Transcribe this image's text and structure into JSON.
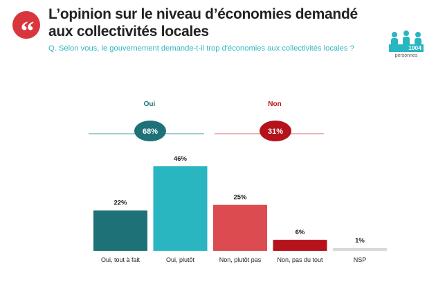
{
  "header": {
    "title": "L’opinion sur le niveau d’économies demandé aux collectivités locales",
    "question": "Q. Selon vous, le gouvernement demande-t-il trop d'économies aux collectivités locales ?",
    "sample_count": "1004",
    "sample_unit": "personnes"
  },
  "colors": {
    "brand_red": "#d8363c",
    "brand_teal": "#29b6c1",
    "oui_dark": "#1e7277",
    "non_dark": "#b5121b",
    "non_light": "#db4b4f",
    "nsp_grey": "#d9d9d9"
  },
  "chart_data": {
    "type": "bar",
    "title": "L’opinion sur le niveau d’économies demandé aux collectivités locales",
    "categories": [
      "Oui, tout à fait",
      "Oui, plutôt",
      "Non, plutôt pas",
      "Non, pas du tout",
      "NSP"
    ],
    "values": [
      22,
      46,
      25,
      6,
      1
    ],
    "value_labels": [
      "22%",
      "46%",
      "25%",
      "6%",
      "1%"
    ],
    "bar_colors": [
      "#1e7277",
      "#29b6c1",
      "#db4b4f",
      "#b5121b",
      "#d9d9d9"
    ],
    "ylim": [
      0,
      50
    ],
    "xlabel": "",
    "ylabel": "",
    "grid": false,
    "groups": [
      {
        "name": "Oui",
        "total": 68,
        "total_label": "68%",
        "color": "#1e7277",
        "line_color": "#4a9ba5"
      },
      {
        "name": "Non",
        "total": 31,
        "total_label": "31%",
        "color": "#b5121b",
        "line_color": "#d86a6e"
      }
    ]
  }
}
